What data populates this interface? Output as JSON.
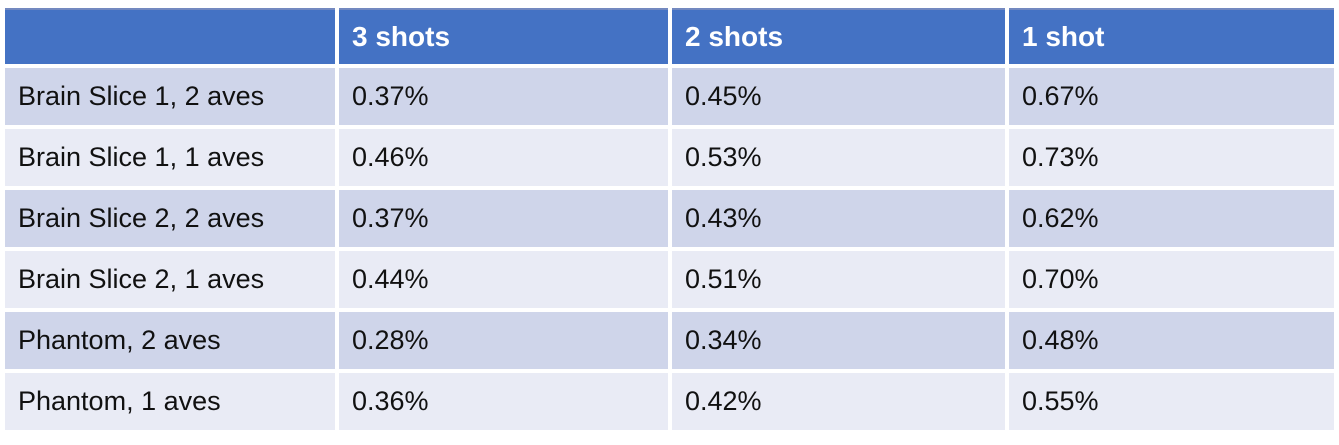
{
  "colors": {
    "header_bg": "#4472C4",
    "header_top_edge": "#7389C0",
    "header_text": "#FFFFFF",
    "row_band_dark": "#CFD5EA",
    "row_band_light": "#E9EBF5",
    "body_text": "#111111",
    "page_background": "#FFFFFF"
  },
  "chart_data": {
    "type": "table",
    "title": "",
    "columns": [
      "",
      "3 shots",
      "2 shots",
      "1 shot"
    ],
    "rows": [
      {
        "label": "Brain Slice 1, 2 aves",
        "values": [
          "0.37%",
          "0.45%",
          "0.67%"
        ]
      },
      {
        "label": "Brain Slice 1, 1 aves",
        "values": [
          "0.46%",
          "0.53%",
          "0.73%"
        ]
      },
      {
        "label": "Brain Slice 2, 2 aves",
        "values": [
          "0.37%",
          "0.43%",
          "0.62%"
        ]
      },
      {
        "label": "Brain Slice 2, 1 aves",
        "values": [
          "0.44%",
          "0.51%",
          "0.70%"
        ]
      },
      {
        "label": "Phantom, 2 aves",
        "values": [
          "0.28%",
          "0.34%",
          "0.48%"
        ]
      },
      {
        "label": "Phantom, 1 aves",
        "values": [
          "0.36%",
          "0.42%",
          "0.55%"
        ]
      }
    ]
  }
}
